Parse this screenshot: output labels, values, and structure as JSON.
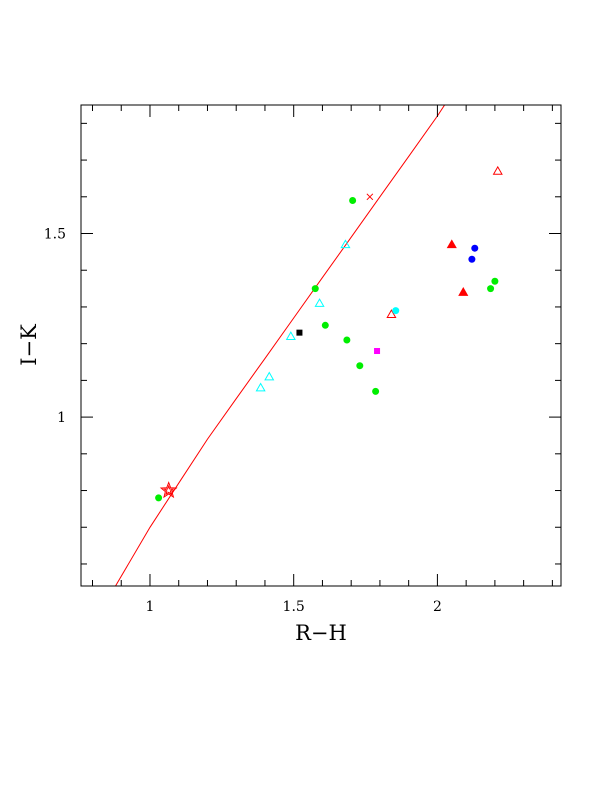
{
  "chart_data": {
    "type": "scatter",
    "title": "",
    "xlabel": "R−H",
    "ylabel": "I−K",
    "xlim": [
      0.76,
      2.43
    ],
    "ylim": [
      0.54,
      1.85
    ],
    "grid": false,
    "x_ticks": [
      {
        "value": 1,
        "label": "1"
      },
      {
        "value": 1.5,
        "label": "1.5"
      },
      {
        "value": 2,
        "label": "2"
      }
    ],
    "y_ticks": [
      {
        "value": 1,
        "label": "1"
      },
      {
        "value": 1.5,
        "label": "1.5"
      }
    ],
    "colors": {
      "red": "#ff0000",
      "green": "#00ee00",
      "cyan": "#00ffff",
      "blue": "#0000ff",
      "magenta": "#ff00ff",
      "black": "#000000"
    },
    "curve": {
      "color": "red",
      "x": [
        0.88,
        1.0,
        1.1,
        1.2,
        1.3,
        1.4,
        1.5,
        1.6,
        1.7,
        1.8,
        1.9,
        2.0,
        2.05
      ],
      "y": [
        0.54,
        0.7,
        0.82,
        0.94,
        1.05,
        1.16,
        1.27,
        1.38,
        1.49,
        1.6,
        1.71,
        1.82,
        1.88
      ]
    },
    "points": [
      {
        "x": 1.065,
        "y": 0.8,
        "marker": "star-open",
        "color": "red"
      },
      {
        "x": 1.03,
        "y": 0.78,
        "marker": "circle-filled",
        "color": "green"
      },
      {
        "x": 1.385,
        "y": 1.08,
        "marker": "triangle-open",
        "color": "cyan"
      },
      {
        "x": 1.415,
        "y": 1.11,
        "marker": "triangle-open",
        "color": "cyan"
      },
      {
        "x": 1.49,
        "y": 1.22,
        "marker": "triangle-open",
        "color": "cyan"
      },
      {
        "x": 1.52,
        "y": 1.23,
        "marker": "square-filled",
        "color": "black"
      },
      {
        "x": 1.575,
        "y": 1.35,
        "marker": "circle-filled",
        "color": "green"
      },
      {
        "x": 1.59,
        "y": 1.31,
        "marker": "triangle-open",
        "color": "cyan"
      },
      {
        "x": 1.61,
        "y": 1.25,
        "marker": "circle-filled",
        "color": "green"
      },
      {
        "x": 1.68,
        "y": 1.47,
        "marker": "triangle-open",
        "color": "cyan"
      },
      {
        "x": 1.685,
        "y": 1.21,
        "marker": "circle-filled",
        "color": "green"
      },
      {
        "x": 1.705,
        "y": 1.59,
        "marker": "circle-filled",
        "color": "green"
      },
      {
        "x": 1.73,
        "y": 1.14,
        "marker": "circle-filled",
        "color": "green"
      },
      {
        "x": 1.765,
        "y": 1.6,
        "marker": "cross",
        "color": "red"
      },
      {
        "x": 1.785,
        "y": 1.07,
        "marker": "circle-filled",
        "color": "green"
      },
      {
        "x": 1.79,
        "y": 1.18,
        "marker": "square-filled",
        "color": "magenta"
      },
      {
        "x": 1.84,
        "y": 1.28,
        "marker": "triangle-open",
        "color": "red"
      },
      {
        "x": 1.855,
        "y": 1.29,
        "marker": "circle-filled",
        "color": "cyan"
      },
      {
        "x": 2.05,
        "y": 1.47,
        "marker": "triangle-filled",
        "color": "red"
      },
      {
        "x": 2.09,
        "y": 1.34,
        "marker": "triangle-filled",
        "color": "red"
      },
      {
        "x": 2.12,
        "y": 1.43,
        "marker": "circle-filled",
        "color": "blue"
      },
      {
        "x": 2.13,
        "y": 1.46,
        "marker": "circle-filled",
        "color": "blue"
      },
      {
        "x": 2.185,
        "y": 1.35,
        "marker": "circle-filled",
        "color": "green"
      },
      {
        "x": 2.2,
        "y": 1.37,
        "marker": "circle-filled",
        "color": "green"
      },
      {
        "x": 2.21,
        "y": 1.67,
        "marker": "triangle-open",
        "color": "red"
      }
    ]
  }
}
